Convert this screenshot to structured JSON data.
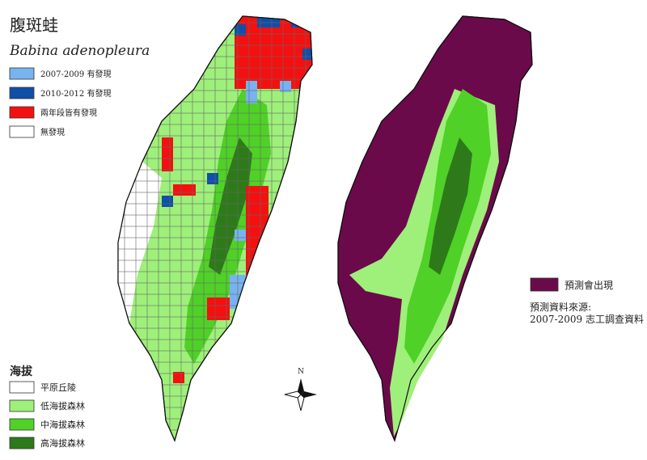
{
  "title": "腹斑蛙",
  "subtitle": "Babina adenopleura",
  "survey_legend": [
    {
      "label": "2007-2009 有發現",
      "color": "#77b3f0"
    },
    {
      "label": "2010-2012 有發現",
      "color": "#0f4fa8"
    },
    {
      "label": "兩年段皆有發現",
      "color": "#f41010"
    },
    {
      "label": "無發現",
      "color": "#ffffff"
    }
  ],
  "elevation_legend": {
    "title": "海拔",
    "items": [
      {
        "label": "平原丘陵",
        "color": "#ffffff"
      },
      {
        "label": "低海拔森林",
        "color": "#9ef07a"
      },
      {
        "label": "中海拔森林",
        "color": "#4fd127"
      },
      {
        "label": "高海拔森林",
        "color": "#2e7a1a"
      }
    ]
  },
  "prediction_legend": {
    "label": "預測會出現",
    "color": "#6b0a4a"
  },
  "source": {
    "line1": "預測資料來源:",
    "line2": "2007-2009 志工調查資料"
  },
  "compass": "N"
}
